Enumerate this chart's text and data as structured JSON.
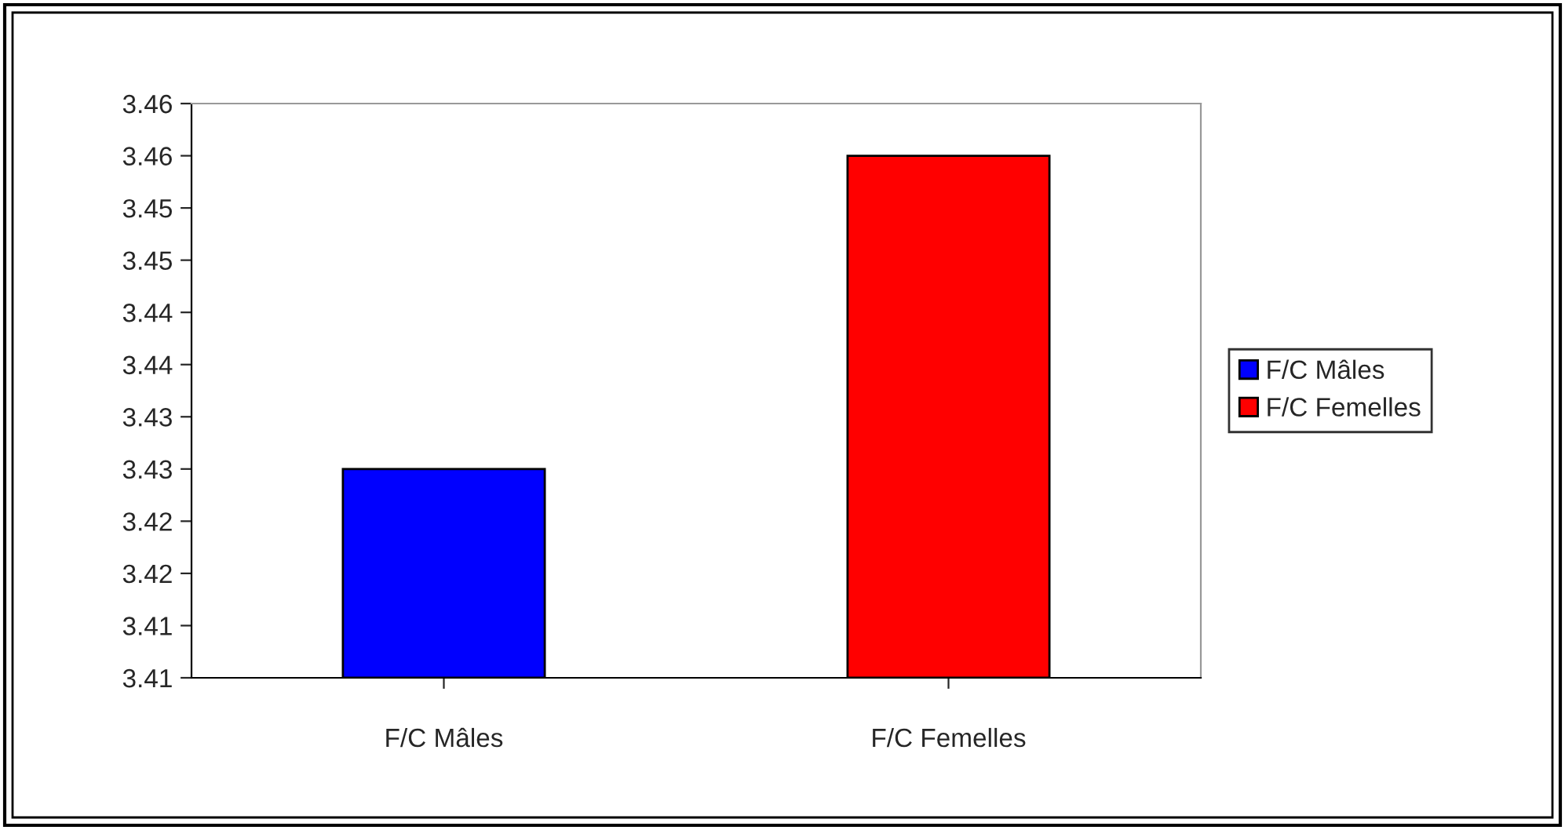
{
  "chart_data": {
    "type": "bar",
    "categories": [
      "F/C Mâles",
      "F/C Femelles"
    ],
    "series": [
      {
        "name": "F/C Mâles",
        "color": "#0000ff",
        "values": [
          3.43,
          null
        ]
      },
      {
        "name": "F/C Femelles",
        "color": "#ff0000",
        "values": [
          null,
          3.46
        ]
      }
    ],
    "ylim": [
      3.41,
      3.465
    ],
    "yticks": [
      {
        "value": 3.41,
        "label": "3.41"
      },
      {
        "value": 3.415,
        "label": "3.41"
      },
      {
        "value": 3.42,
        "label": "3.42"
      },
      {
        "value": 3.425,
        "label": "3.42"
      },
      {
        "value": 3.43,
        "label": "3.43"
      },
      {
        "value": 3.435,
        "label": "3.43"
      },
      {
        "value": 3.44,
        "label": "3.44"
      },
      {
        "value": 3.445,
        "label": "3.44"
      },
      {
        "value": 3.45,
        "label": "3.45"
      },
      {
        "value": 3.455,
        "label": "3.45"
      },
      {
        "value": 3.46,
        "label": "3.46"
      },
      {
        "value": 3.465,
        "label": "3.46"
      }
    ],
    "legend": "right"
  }
}
